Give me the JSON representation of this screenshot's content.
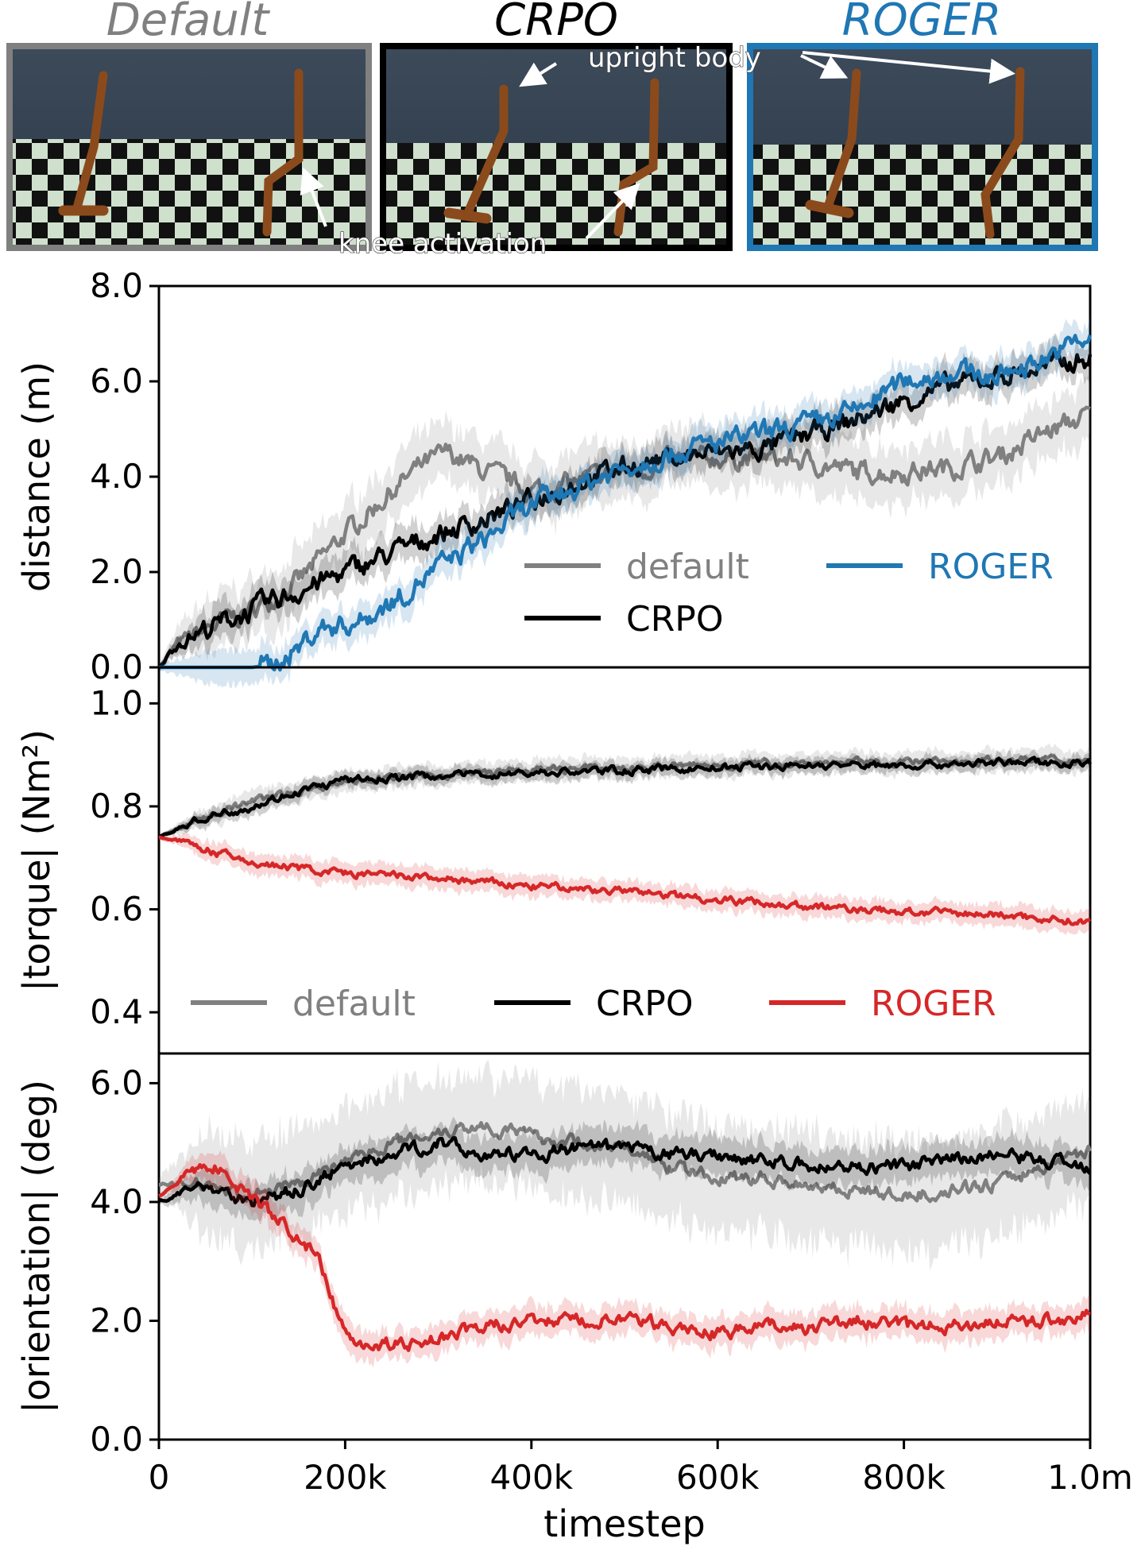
{
  "panels": [
    {
      "title": "Default",
      "color": "#808080",
      "frame": "#808080"
    },
    {
      "title": "CRPO",
      "color": "#000000",
      "frame": "#000000"
    },
    {
      "title": "ROGER",
      "color": "#1f77b4",
      "frame": "#1f77b4"
    }
  ],
  "annotations": {
    "upright": "upright body",
    "knee": "knee activation"
  },
  "colors": {
    "default": "#808080",
    "crpo": "#000000",
    "roger_blue": "#1f77b4",
    "roger_red": "#d62728"
  },
  "chart_data": [
    {
      "type": "line",
      "ylabel": "distance (m)",
      "xlabel": "",
      "ylim": [
        0,
        8
      ],
      "yticks": [
        "0.0",
        "2.0",
        "4.0",
        "6.0",
        "8.0"
      ],
      "legend": {
        "placement": "lower-right",
        "entries": [
          "default",
          "ROGER",
          "CRPO"
        ]
      },
      "series": [
        {
          "name": "default",
          "color": "#808080",
          "band": 0.6,
          "x": [
            0,
            20,
            50,
            100,
            150,
            200,
            250,
            280,
            310,
            350,
            400,
            450,
            500,
            550,
            600,
            650,
            700,
            750,
            800,
            850,
            900,
            950,
            1000
          ],
          "y": [
            0,
            0.5,
            0.8,
            1.2,
            1.8,
            2.8,
            3.7,
            4.2,
            4.5,
            4.1,
            3.7,
            3.9,
            4.1,
            4.3,
            4.4,
            4.4,
            4.3,
            4.1,
            4.1,
            4.2,
            4.4,
            4.9,
            5.3
          ]
        },
        {
          "name": "CRPO",
          "color": "#000000",
          "band": 0.35,
          "x": [
            0,
            20,
            50,
            100,
            150,
            200,
            250,
            300,
            350,
            400,
            450,
            500,
            550,
            600,
            650,
            700,
            750,
            800,
            850,
            900,
            950,
            1000
          ],
          "y": [
            0,
            0.5,
            0.8,
            1.2,
            1.6,
            2.0,
            2.4,
            2.8,
            3.1,
            3.5,
            3.9,
            4.2,
            4.4,
            4.5,
            4.6,
            4.9,
            5.2,
            5.6,
            5.9,
            6.1,
            6.3,
            6.5
          ]
        },
        {
          "name": "ROGER",
          "color": "#1f77b4",
          "band": 0.35,
          "x": [
            0,
            100,
            120,
            150,
            170,
            200,
            220,
            260,
            300,
            350,
            400,
            450,
            500,
            550,
            600,
            650,
            700,
            750,
            800,
            850,
            900,
            950,
            1000
          ],
          "y": [
            0,
            0.0,
            0.05,
            0.4,
            0.8,
            0.9,
            1.0,
            1.5,
            2.1,
            2.7,
            3.4,
            3.8,
            4.2,
            4.5,
            4.7,
            4.9,
            5.1,
            5.4,
            6.0,
            6.2,
            6.1,
            6.5,
            6.9
          ]
        }
      ]
    },
    {
      "type": "line",
      "ylabel": "|torque| (Nm²)",
      "xlabel": "",
      "ylim": [
        0.32,
        1.07
      ],
      "yticks": [
        "0.4",
        "0.6",
        "0.8",
        "1.0"
      ],
      "legend": {
        "placement": "bottom",
        "entries": [
          "default",
          "CRPO",
          "ROGER"
        ]
      },
      "series": [
        {
          "name": "default",
          "color": "#808080",
          "band": 0.02,
          "x": [
            0,
            50,
            100,
            150,
            200,
            300,
            400,
            500,
            600,
            700,
            800,
            900,
            1000
          ],
          "y": [
            0.74,
            0.78,
            0.81,
            0.83,
            0.85,
            0.86,
            0.87,
            0.875,
            0.88,
            0.885,
            0.885,
            0.89,
            0.89
          ]
        },
        {
          "name": "CRPO",
          "color": "#000000",
          "band": 0.015,
          "x": [
            0,
            50,
            100,
            150,
            200,
            300,
            400,
            500,
            600,
            700,
            800,
            900,
            1000
          ],
          "y": [
            0.74,
            0.78,
            0.8,
            0.83,
            0.85,
            0.86,
            0.865,
            0.87,
            0.875,
            0.88,
            0.88,
            0.885,
            0.885
          ]
        },
        {
          "name": "ROGER",
          "color": "#d62728",
          "band": 0.02,
          "x": [
            0,
            30,
            60,
            100,
            150,
            200,
            300,
            400,
            500,
            600,
            700,
            800,
            900,
            1000
          ],
          "y": [
            0.74,
            0.73,
            0.71,
            0.69,
            0.68,
            0.67,
            0.66,
            0.645,
            0.635,
            0.62,
            0.605,
            0.595,
            0.59,
            0.575
          ]
        }
      ]
    },
    {
      "type": "line",
      "ylabel": "|orientation| (deg)",
      "xlabel": "timestep",
      "ylim": [
        0,
        6.5
      ],
      "yticks": [
        "0.0",
        "2.0",
        "4.0",
        "6.0"
      ],
      "xticks": [
        "0",
        "200k",
        "400k",
        "600k",
        "800k",
        "1.0m"
      ],
      "series": [
        {
          "name": "default",
          "color": "#808080",
          "band": 0.9,
          "x": [
            0,
            50,
            100,
            150,
            200,
            250,
            300,
            350,
            400,
            450,
            500,
            550,
            600,
            650,
            700,
            750,
            800,
            850,
            900,
            950,
            1000
          ],
          "y": [
            4.3,
            4.3,
            4.1,
            4.3,
            4.7,
            5.0,
            5.2,
            5.3,
            5.1,
            5.0,
            4.9,
            4.6,
            4.4,
            4.4,
            4.3,
            4.2,
            4.1,
            4.2,
            4.3,
            4.6,
            4.9
          ]
        },
        {
          "name": "CRPO",
          "color": "#000000",
          "band": 0.3,
          "x": [
            0,
            50,
            100,
            150,
            200,
            250,
            300,
            350,
            400,
            450,
            500,
            550,
            600,
            650,
            700,
            750,
            800,
            850,
            900,
            950,
            1000
          ],
          "y": [
            4.0,
            4.3,
            4.0,
            4.2,
            4.6,
            4.8,
            5.0,
            4.8,
            4.8,
            4.9,
            4.9,
            4.8,
            4.8,
            4.7,
            4.6,
            4.6,
            4.6,
            4.7,
            4.8,
            4.7,
            4.6
          ]
        },
        {
          "name": "ROGER",
          "color": "#d62728",
          "band": 0.25,
          "x": [
            0,
            30,
            60,
            100,
            120,
            150,
            170,
            180,
            200,
            230,
            260,
            300,
            350,
            400,
            450,
            500,
            550,
            600,
            650,
            700,
            750,
            800,
            850,
            900,
            950,
            1000
          ],
          "y": [
            4.1,
            4.5,
            4.6,
            4.1,
            3.8,
            3.4,
            3.1,
            2.6,
            1.8,
            1.6,
            1.6,
            1.7,
            1.9,
            2.0,
            2.0,
            2.0,
            1.9,
            1.8,
            1.9,
            1.9,
            2.0,
            1.9,
            1.9,
            2.0,
            2.0,
            2.1
          ]
        }
      ]
    }
  ]
}
